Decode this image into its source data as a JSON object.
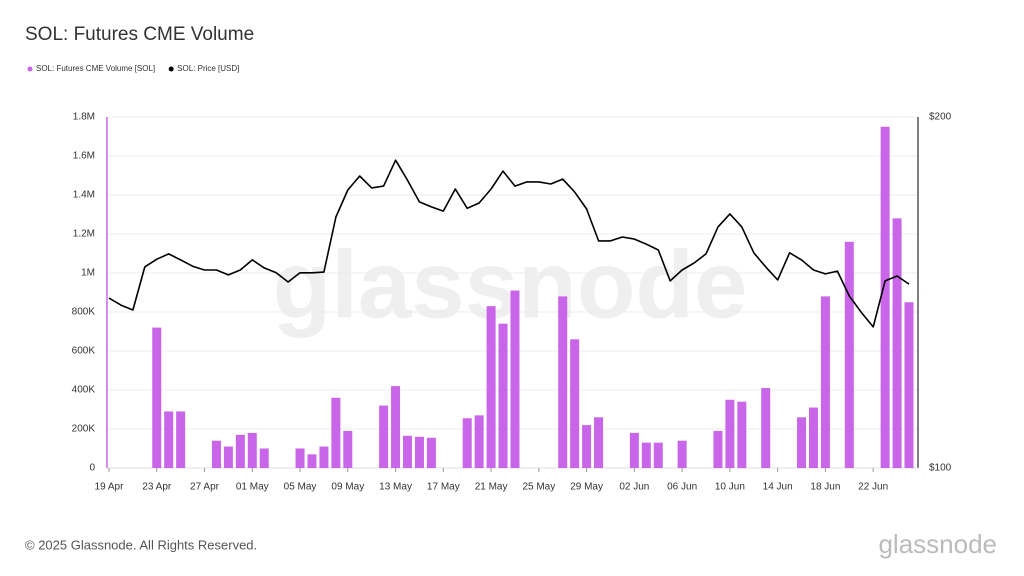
{
  "chart_data": {
    "type": "bar",
    "title": "SOL: Futures CME Volume",
    "categories": [
      "19 Apr",
      null,
      null,
      null,
      "23 Apr",
      null,
      null,
      null,
      "27 Apr",
      null,
      null,
      null,
      "01 May",
      null,
      null,
      null,
      "05 May",
      null,
      null,
      null,
      "09 May",
      null,
      null,
      null,
      "13 May",
      null,
      null,
      null,
      "17 May",
      null,
      null,
      null,
      "21 May",
      null,
      null,
      null,
      "25 May",
      null,
      null,
      null,
      "29 May",
      null,
      null,
      null,
      "02 Jun",
      null,
      null,
      null,
      "06 Jun",
      null,
      null,
      null,
      "10 Jun",
      null,
      null,
      null,
      "14 Jun",
      null,
      null,
      null,
      "18 Jun",
      null,
      null,
      null,
      "22 Jun",
      null,
      null,
      null
    ],
    "series": [
      {
        "name": "SOL: Futures CME Volume [SOL]",
        "color": "#c865e8",
        "type": "bar",
        "values": [
          0,
          0,
          0,
          0,
          720000,
          290000,
          290000,
          0,
          0,
          140000,
          110000,
          170000,
          180000,
          100000,
          0,
          0,
          100000,
          70000,
          110000,
          360000,
          190000,
          0,
          0,
          320000,
          420000,
          165000,
          160000,
          155000,
          0,
          0,
          255000,
          270000,
          830000,
          740000,
          910000,
          0,
          0,
          0,
          880000,
          660000,
          220000,
          260000,
          0,
          0,
          180000,
          130000,
          130000,
          0,
          140000,
          0,
          0,
          190000,
          350000,
          340000,
          0,
          410000,
          0,
          0,
          260000,
          310000,
          880000,
          0,
          1160000,
          0,
          0,
          1750000,
          1280000,
          850000
        ]
      },
      {
        "name": "SOL: Price [USD]",
        "color": "#000000",
        "type": "line",
        "axis": "y2",
        "values": [
          148.4,
          146.4,
          145,
          157.3,
          159.5,
          161,
          159.3,
          157.5,
          156.4,
          156.4,
          155,
          156.4,
          159.3,
          157,
          155.6,
          153,
          155.6,
          155.6,
          155.8,
          171.5,
          179.2,
          183.2,
          179.8,
          180.3,
          187.7,
          182,
          175.8,
          174.4,
          173.2,
          179.5,
          174,
          175.5,
          179.5,
          184.6,
          180.3,
          181.5,
          181.5,
          180.9,
          182.3,
          178.6,
          173.8,
          164.7,
          164.7,
          165.8,
          165.2,
          163.8,
          162.1,
          153.3,
          156.4,
          158.4,
          161,
          168.7,
          172.4,
          168.7,
          161.3,
          157.3,
          153.6,
          161.3,
          159.3,
          156.4,
          155.3,
          156.1,
          149,
          144.4,
          140.2,
          153.3,
          154.7,
          152.4
        ]
      }
    ],
    "ylim": [
      0,
      1800000
    ],
    "yticks": [
      0,
      {
        "value": 200000,
        "label": "200K"
      },
      {
        "value": 400000,
        "label": "400K"
      },
      {
        "value": 600000,
        "label": "600K"
      },
      {
        "value": 800000,
        "label": "800K"
      },
      {
        "value": 1000000,
        "label": "1M"
      },
      {
        "value": 1200000,
        "label": "1.2M"
      },
      {
        "value": 1400000,
        "label": "1.4M"
      },
      {
        "value": 1600000,
        "label": "1.6M"
      },
      {
        "value": 1800000,
        "label": "1.8M"
      }
    ],
    "y2lim": [
      100,
      200
    ],
    "y2ticks": [
      {
        "value": 100,
        "label": "$100"
      },
      {
        "value": 200,
        "label": "$200"
      }
    ],
    "grid": true,
    "legend": "top-left"
  },
  "watermark": "glassnode",
  "footer": "© 2025 Glassnode. All Rights Reserved.",
  "logo": "glassnode"
}
